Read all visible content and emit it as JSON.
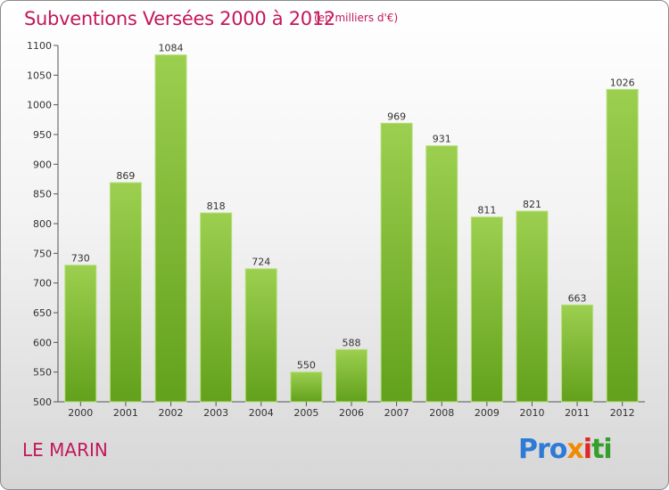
{
  "header": {
    "title": "Subventions Versées 2000 à 2012",
    "subtitle": "(en milliers d'€)"
  },
  "footer": {
    "location": "LE MARIN",
    "logo": [
      "Pro",
      "x",
      "i",
      "ti"
    ]
  },
  "colors": {
    "title": "#c2185b",
    "bar_light": "#9ccf4f",
    "bar_dark": "#62a11c",
    "axis": "#555555"
  },
  "chart_data": {
    "type": "bar",
    "title": "Subventions Versées 2000 à 2012",
    "subtitle": "(en milliers d'€)",
    "categories": [
      "2000",
      "2001",
      "2002",
      "2003",
      "2004",
      "2005",
      "2006",
      "2007",
      "2008",
      "2009",
      "2010",
      "2011",
      "2012"
    ],
    "values": [
      730,
      869,
      1084,
      818,
      724,
      550,
      588,
      969,
      931,
      811,
      821,
      663,
      1026
    ],
    "ylim": [
      500,
      1100
    ],
    "yticks": [
      500,
      550,
      600,
      650,
      700,
      750,
      800,
      850,
      900,
      950,
      1000,
      1050,
      1100
    ],
    "grid": false,
    "data_labels": true
  }
}
